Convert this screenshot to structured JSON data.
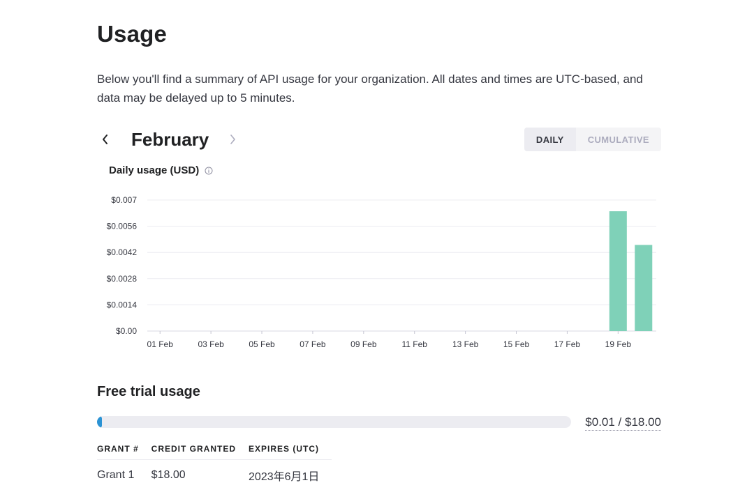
{
  "page": {
    "title": "Usage",
    "description": "Below you'll find a summary of API usage for your organization. All dates and times are UTC-based, and data may be delayed up to 5 minutes."
  },
  "nav": {
    "month": "February",
    "prev_icon": "chevron-left-icon",
    "next_icon": "chevron-right-icon"
  },
  "toggle": {
    "daily": "DAILY",
    "cumulative": "CUMULATIVE",
    "selected": "DAILY"
  },
  "chart_title": "Daily usage (USD)",
  "chart_data": {
    "type": "bar",
    "title": "Daily usage (USD)",
    "ylabel": "",
    "xlabel": "",
    "ylim": [
      0,
      0.007
    ],
    "yticks": [
      "$0.00",
      "$0.0014",
      "$0.0028",
      "$0.0042",
      "$0.0056",
      "$0.007"
    ],
    "xticks": [
      "01 Feb",
      "03 Feb",
      "05 Feb",
      "07 Feb",
      "09 Feb",
      "11 Feb",
      "13 Feb",
      "15 Feb",
      "17 Feb",
      "19 Feb"
    ],
    "categories": [
      "01 Feb",
      "02 Feb",
      "03 Feb",
      "04 Feb",
      "05 Feb",
      "06 Feb",
      "07 Feb",
      "08 Feb",
      "09 Feb",
      "10 Feb",
      "11 Feb",
      "12 Feb",
      "13 Feb",
      "14 Feb",
      "15 Feb",
      "16 Feb",
      "17 Feb",
      "18 Feb",
      "19 Feb",
      "20 Feb"
    ],
    "values": [
      0,
      0,
      0,
      0,
      0,
      0,
      0,
      0,
      0,
      0,
      0,
      0,
      0,
      0,
      0,
      0,
      0,
      0,
      0.0064,
      0.0046
    ],
    "bar_color": "#7fd1b8",
    "grid": true
  },
  "free_trial": {
    "title": "Free trial usage",
    "used_text": "$0.01 / $18.00",
    "fraction_used": 0.0006,
    "bar_color": "#2b93d4"
  },
  "grants": {
    "headers": [
      "GRANT #",
      "CREDIT GRANTED",
      "EXPIRES (UTC)"
    ],
    "rows": [
      [
        "Grant 1",
        "$18.00",
        "2023年6月1日"
      ]
    ]
  }
}
